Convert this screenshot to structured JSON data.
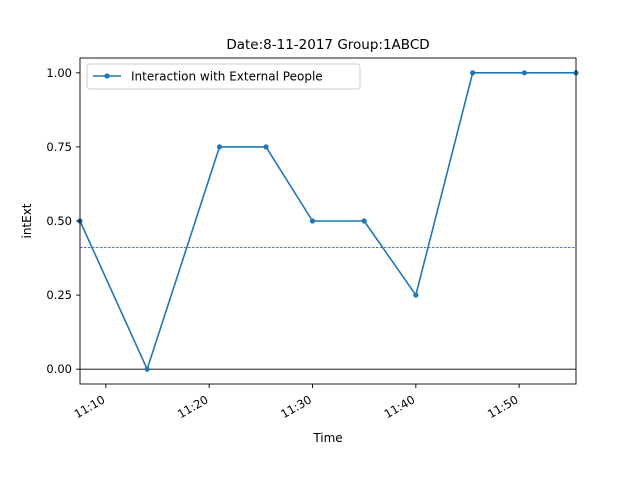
{
  "chart_data": {
    "type": "line",
    "title": "Date:8-11-2017  Group:1ABCD",
    "xlabel": "Time",
    "ylabel": "intExt",
    "xlim": [
      "11:07:30",
      "11:55:30"
    ],
    "ylim": [
      -0.05,
      1.05
    ],
    "xticks": [
      "11:10",
      "11:20",
      "11:30",
      "11:40",
      "11:50"
    ],
    "yticks": [
      "0.00",
      "0.25",
      "0.50",
      "0.75",
      "1.00"
    ],
    "legend_position": "top-left",
    "grid": false,
    "series": [
      {
        "name": "Interaction with External People",
        "color": "#1f77b4",
        "marker": "circle",
        "points": [
          {
            "x": "11:07:30",
            "y": 0.5
          },
          {
            "x": "11:14:00",
            "y": 0.0
          },
          {
            "x": "11:21:00",
            "y": 0.75
          },
          {
            "x": "11:25:30",
            "y": 0.75
          },
          {
            "x": "11:30:00",
            "y": 0.5
          },
          {
            "x": "11:35:00",
            "y": 0.5
          },
          {
            "x": "11:40:00",
            "y": 0.25
          },
          {
            "x": "11:45:30",
            "y": 1.0
          },
          {
            "x": "11:50:30",
            "y": 1.0
          },
          {
            "x": "11:55:30",
            "y": 1.0
          }
        ]
      }
    ],
    "reference_lines": [
      {
        "orientation": "horizontal",
        "y": 0.41,
        "style": "dashed",
        "color": "#0000ff"
      },
      {
        "orientation": "horizontal",
        "y": 0.0,
        "style": "solid",
        "color": "#000000"
      }
    ]
  }
}
